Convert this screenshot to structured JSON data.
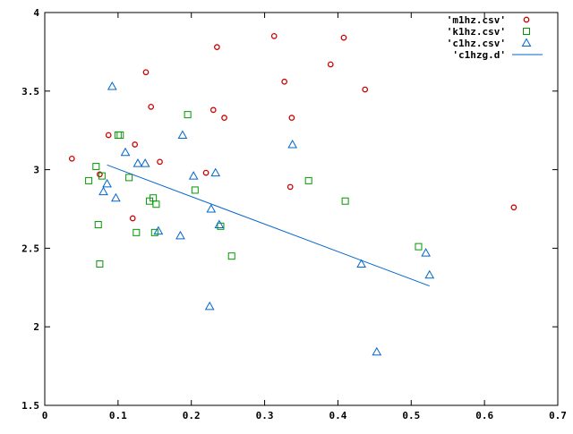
{
  "chart_data": {
    "type": "scatter",
    "title": "",
    "xlabel": "",
    "ylabel": "",
    "xlim": [
      0,
      0.7
    ],
    "ylim": [
      1.5,
      4
    ],
    "grid": false,
    "legend_position": "top-right",
    "xticks": [
      {
        "v": 0,
        "label": "0"
      },
      {
        "v": 0.1,
        "label": "0.1"
      },
      {
        "v": 0.2,
        "label": "0.2"
      },
      {
        "v": 0.3,
        "label": "0.3"
      },
      {
        "v": 0.4,
        "label": "0.4"
      },
      {
        "v": 0.5,
        "label": "0.5"
      },
      {
        "v": 0.6,
        "label": "0.6"
      },
      {
        "v": 0.7,
        "label": "0.7"
      }
    ],
    "yticks": [
      {
        "v": 1.5,
        "label": "1.5"
      },
      {
        "v": 2,
        "label": "2"
      },
      {
        "v": 2.5,
        "label": "2.5"
      },
      {
        "v": 3,
        "label": "3"
      },
      {
        "v": 3.5,
        "label": "3.5"
      },
      {
        "v": 4,
        "label": "4"
      }
    ],
    "series": [
      {
        "name": "'m1hz.csv'",
        "marker": "circle",
        "color": "#cc0000",
        "points": [
          [
            0.037,
            3.07
          ],
          [
            0.075,
            2.97
          ],
          [
            0.087,
            3.22
          ],
          [
            0.12,
            2.69
          ],
          [
            0.123,
            3.16
          ],
          [
            0.138,
            3.62
          ],
          [
            0.145,
            3.4
          ],
          [
            0.157,
            3.05
          ],
          [
            0.22,
            2.98
          ],
          [
            0.23,
            3.38
          ],
          [
            0.235,
            3.78
          ],
          [
            0.245,
            3.33
          ],
          [
            0.313,
            3.85
          ],
          [
            0.327,
            3.56
          ],
          [
            0.335,
            2.89
          ],
          [
            0.337,
            3.33
          ],
          [
            0.39,
            3.67
          ],
          [
            0.408,
            3.84
          ],
          [
            0.437,
            3.51
          ],
          [
            0.64,
            2.76
          ]
        ]
      },
      {
        "name": "'k1hz.csv'",
        "marker": "square",
        "color": "#009900",
        "points": [
          [
            0.06,
            2.93
          ],
          [
            0.07,
            3.02
          ],
          [
            0.073,
            2.65
          ],
          [
            0.075,
            2.4
          ],
          [
            0.078,
            2.96
          ],
          [
            0.1,
            3.22
          ],
          [
            0.103,
            3.22
          ],
          [
            0.115,
            2.95
          ],
          [
            0.125,
            2.6
          ],
          [
            0.143,
            2.8
          ],
          [
            0.148,
            2.82
          ],
          [
            0.15,
            2.6
          ],
          [
            0.152,
            2.78
          ],
          [
            0.195,
            3.35
          ],
          [
            0.205,
            2.87
          ],
          [
            0.24,
            2.64
          ],
          [
            0.255,
            2.45
          ],
          [
            0.36,
            2.93
          ],
          [
            0.41,
            2.8
          ],
          [
            0.51,
            2.51
          ]
        ]
      },
      {
        "name": "'c1hz.csv'",
        "marker": "triangle",
        "color": "#0066cc",
        "points": [
          [
            0.08,
            2.86
          ],
          [
            0.085,
            2.91
          ],
          [
            0.092,
            3.53
          ],
          [
            0.097,
            2.82
          ],
          [
            0.11,
            3.11
          ],
          [
            0.127,
            3.04
          ],
          [
            0.137,
            3.04
          ],
          [
            0.155,
            2.61
          ],
          [
            0.185,
            2.58
          ],
          [
            0.188,
            3.22
          ],
          [
            0.203,
            2.96
          ],
          [
            0.225,
            2.13
          ],
          [
            0.227,
            2.75
          ],
          [
            0.233,
            2.98
          ],
          [
            0.238,
            2.65
          ],
          [
            0.338,
            3.16
          ],
          [
            0.432,
            2.4
          ],
          [
            0.453,
            1.84
          ],
          [
            0.52,
            2.47
          ],
          [
            0.525,
            2.33
          ]
        ]
      },
      {
        "name": "'c1hzg.d'",
        "marker": "line",
        "color": "#0066cc",
        "points": [
          [
            0.085,
            3.03
          ],
          [
            0.525,
            2.26
          ]
        ]
      }
    ]
  }
}
